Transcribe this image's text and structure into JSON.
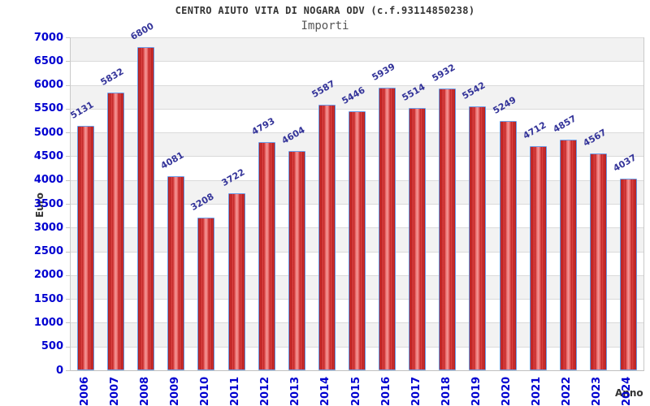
{
  "chart_data": {
    "type": "bar",
    "title": "CENTRO AIUTO VITA DI NOGARA ODV (c.f.93114850238)",
    "subtitle": "Importi",
    "xlabel": "Anno",
    "ylabel": "Euro",
    "categories": [
      "2006",
      "2007",
      "2008",
      "2009",
      "2010",
      "2011",
      "2012",
      "2013",
      "2014",
      "2015",
      "2016",
      "2017",
      "2018",
      "2019",
      "2020",
      "2021",
      "2022",
      "2023",
      "2024"
    ],
    "values": [
      5131,
      5832,
      6800,
      4081,
      3208,
      3722,
      4793,
      4604,
      5587,
      5446,
      5939,
      5514,
      5932,
      5542,
      5249,
      4712,
      4857,
      4567,
      4037
    ],
    "ylim": [
      0,
      7000
    ],
    "ytick_step": 500,
    "grid": "horizontal-bands-alternating",
    "legend": "none",
    "colors": {
      "bar_border": "#6b9be6",
      "bar_gradient": [
        "#9e1616",
        "#cf3333",
        "#b81f1f",
        "#dd4444",
        "#c22626",
        "#ea6a6a",
        "#f49898"
      ],
      "tick_label": "#0000d0",
      "value_label": "#333399",
      "axis_title": "#333333",
      "title": "#333333",
      "subtitle": "#555555",
      "band_gray": "#f2f2f2",
      "band_white": "#ffffff",
      "gridline": "#dadada"
    }
  }
}
